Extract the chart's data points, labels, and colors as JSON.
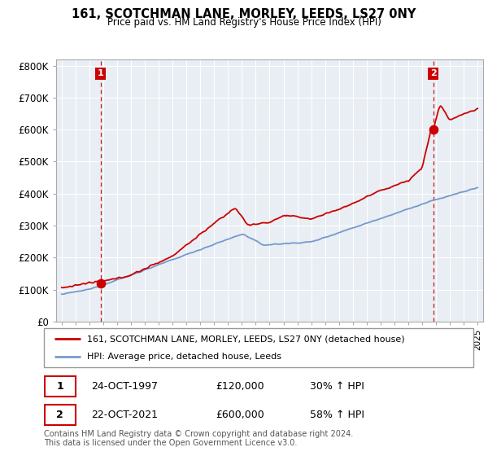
{
  "title": "161, SCOTCHMAN LANE, MORLEY, LEEDS, LS27 0NY",
  "subtitle": "Price paid vs. HM Land Registry's House Price Index (HPI)",
  "red_label": "161, SCOTCHMAN LANE, MORLEY, LEEDS, LS27 0NY (detached house)",
  "blue_label": "HPI: Average price, detached house, Leeds",
  "red_color": "#cc0000",
  "blue_color": "#7799cc",
  "bg_color": "#e8eef4",
  "grid_color": "#ffffff",
  "marker_color": "#cc0000",
  "vline_color": "#cc0000",
  "box_color": "#cc0000",
  "footnote": "Contains HM Land Registry data © Crown copyright and database right 2024.\nThis data is licensed under the Open Government Licence v3.0.",
  "point1_date": "24-OCT-1997",
  "point1_price": "£120,000",
  "point1_hpi": "30% ↑ HPI",
  "point1_year": 1997.8,
  "point1_val": 120000,
  "point2_date": "22-OCT-2021",
  "point2_price": "£600,000",
  "point2_hpi": "58% ↑ HPI",
  "point2_year": 2021.8,
  "point2_val": 600000,
  "ylim_min": 0,
  "ylim_max": 820000,
  "xlim_min": 1994.6,
  "xlim_max": 2025.4
}
